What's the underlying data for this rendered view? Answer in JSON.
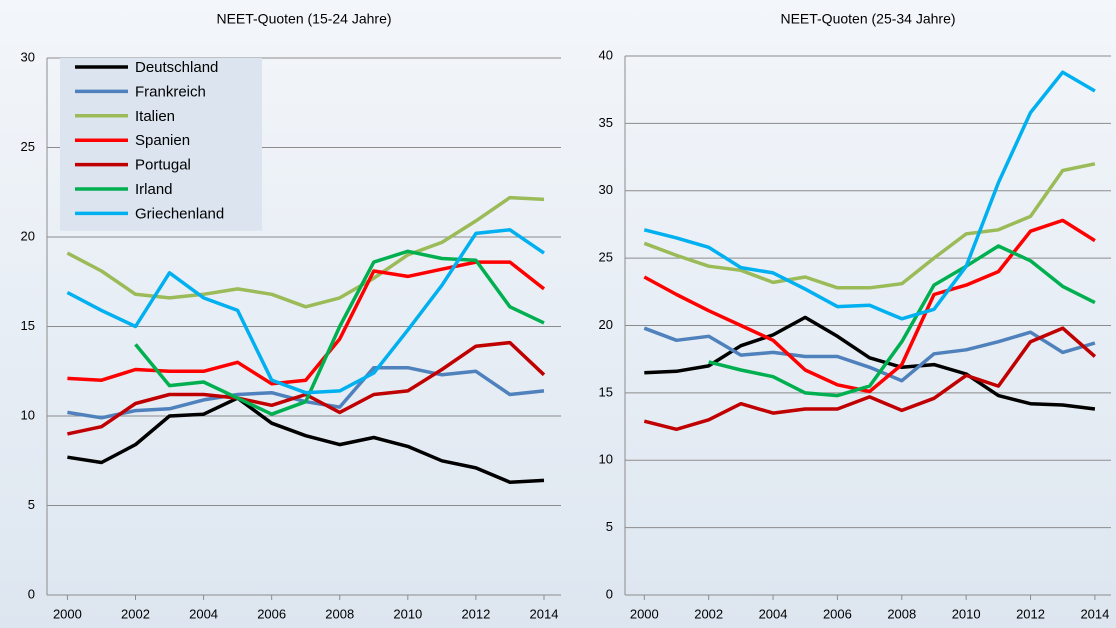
{
  "chart_data": [
    {
      "type": "line",
      "title": "NEET-Quoten (15-24 Jahre)",
      "x": [
        2000,
        2001,
        2002,
        2003,
        2004,
        2005,
        2006,
        2007,
        2008,
        2009,
        2010,
        2011,
        2012,
        2013,
        2014
      ],
      "xlim": [
        1999.4,
        2014.5
      ],
      "xticks": [
        2000,
        2002,
        2004,
        2006,
        2008,
        2010,
        2012,
        2014
      ],
      "ylim": [
        0,
        30
      ],
      "yticks": [
        0,
        5,
        10,
        15,
        20,
        25,
        30
      ],
      "grid": true,
      "legend": "upper left",
      "series": [
        {
          "name": "Deutschland",
          "color": "#000000",
          "values": [
            7.7,
            7.4,
            8.4,
            10.0,
            10.1,
            11.0,
            9.6,
            8.9,
            8.4,
            8.8,
            8.3,
            7.5,
            7.1,
            6.3,
            6.4
          ]
        },
        {
          "name": "Frankreich",
          "color": "#4f81bd",
          "values": [
            10.2,
            9.9,
            10.3,
            10.4,
            10.9,
            11.2,
            11.3,
            10.8,
            10.5,
            12.7,
            12.7,
            12.3,
            12.5,
            11.2,
            11.4
          ]
        },
        {
          "name": "Italien",
          "color": "#9bbb59",
          "values": [
            19.1,
            18.1,
            16.8,
            16.6,
            16.8,
            17.1,
            16.8,
            16.1,
            16.6,
            17.7,
            19.0,
            19.7,
            20.9,
            22.2,
            22.1
          ]
        },
        {
          "name": "Spanien",
          "color": "#ff0000",
          "values": [
            12.1,
            12.0,
            12.6,
            12.5,
            12.5,
            13.0,
            11.8,
            12.0,
            14.3,
            18.1,
            17.8,
            18.2,
            18.6,
            18.6,
            17.1
          ]
        },
        {
          "name": "Portugal",
          "color": "#c00000",
          "values": [
            9.0,
            9.4,
            10.7,
            11.2,
            11.2,
            11.0,
            10.6,
            11.2,
            10.2,
            11.2,
            11.4,
            12.6,
            13.9,
            14.1,
            12.3
          ]
        },
        {
          "name": "Irland",
          "color": "#00b050",
          "values": [
            null,
            null,
            14.0,
            11.7,
            11.9,
            11.0,
            10.1,
            10.8,
            15.0,
            18.6,
            19.2,
            18.8,
            18.7,
            16.1,
            15.2
          ]
        },
        {
          "name": "Griechenland",
          "color": "#00b0f0",
          "values": [
            16.9,
            15.9,
            15.0,
            18.0,
            16.6,
            15.9,
            12.0,
            11.3,
            11.4,
            12.4,
            14.8,
            17.3,
            20.2,
            20.4,
            19.1
          ]
        }
      ]
    },
    {
      "type": "line",
      "title": "NEET-Quoten (25-34 Jahre)",
      "x": [
        2000,
        2001,
        2002,
        2003,
        2004,
        2005,
        2006,
        2007,
        2008,
        2009,
        2010,
        2011,
        2012,
        2013,
        2014
      ],
      "xlim": [
        1999.4,
        2014.5
      ],
      "xticks": [
        2000,
        2002,
        2004,
        2006,
        2008,
        2010,
        2012,
        2014
      ],
      "ylim": [
        0,
        40
      ],
      "yticks": [
        0,
        5,
        10,
        15,
        20,
        25,
        30,
        35,
        40
      ],
      "grid": true,
      "series": [
        {
          "name": "Deutschland",
          "color": "#000000",
          "values": [
            16.5,
            16.6,
            17.0,
            18.5,
            19.3,
            20.6,
            19.2,
            17.6,
            16.9,
            17.1,
            16.4,
            14.8,
            14.2,
            14.1,
            13.8
          ]
        },
        {
          "name": "Frankreich",
          "color": "#4f81bd",
          "values": [
            19.8,
            18.9,
            19.2,
            17.8,
            18.0,
            17.7,
            17.7,
            16.9,
            15.9,
            17.9,
            18.2,
            18.8,
            19.5,
            18.0,
            18.7
          ]
        },
        {
          "name": "Italien",
          "color": "#9bbb59",
          "values": [
            26.1,
            25.2,
            24.4,
            24.1,
            23.2,
            23.6,
            22.8,
            22.8,
            23.1,
            25.0,
            26.8,
            27.1,
            28.1,
            31.5,
            32.0
          ]
        },
        {
          "name": "Spanien",
          "color": "#ff0000",
          "values": [
            23.6,
            22.3,
            21.1,
            20.0,
            18.9,
            16.7,
            15.6,
            15.1,
            17.1,
            22.3,
            23.0,
            24.0,
            27.0,
            27.8,
            26.3
          ]
        },
        {
          "name": "Portugal",
          "color": "#c00000",
          "values": [
            12.9,
            12.3,
            13.0,
            14.2,
            13.5,
            13.8,
            13.8,
            14.7,
            13.7,
            14.6,
            16.3,
            15.5,
            18.8,
            19.8,
            17.7
          ]
        },
        {
          "name": "Irland",
          "color": "#00b050",
          "values": [
            null,
            null,
            17.3,
            16.7,
            16.2,
            15.0,
            14.8,
            15.5,
            18.8,
            23.0,
            24.4,
            25.9,
            24.8,
            22.9,
            21.7
          ]
        },
        {
          "name": "Griechenland",
          "color": "#00b0f0",
          "values": [
            27.1,
            26.5,
            25.8,
            24.3,
            23.9,
            22.7,
            21.4,
            21.5,
            20.5,
            21.2,
            24.4,
            30.6,
            35.8,
            38.8,
            37.4
          ]
        }
      ]
    }
  ]
}
